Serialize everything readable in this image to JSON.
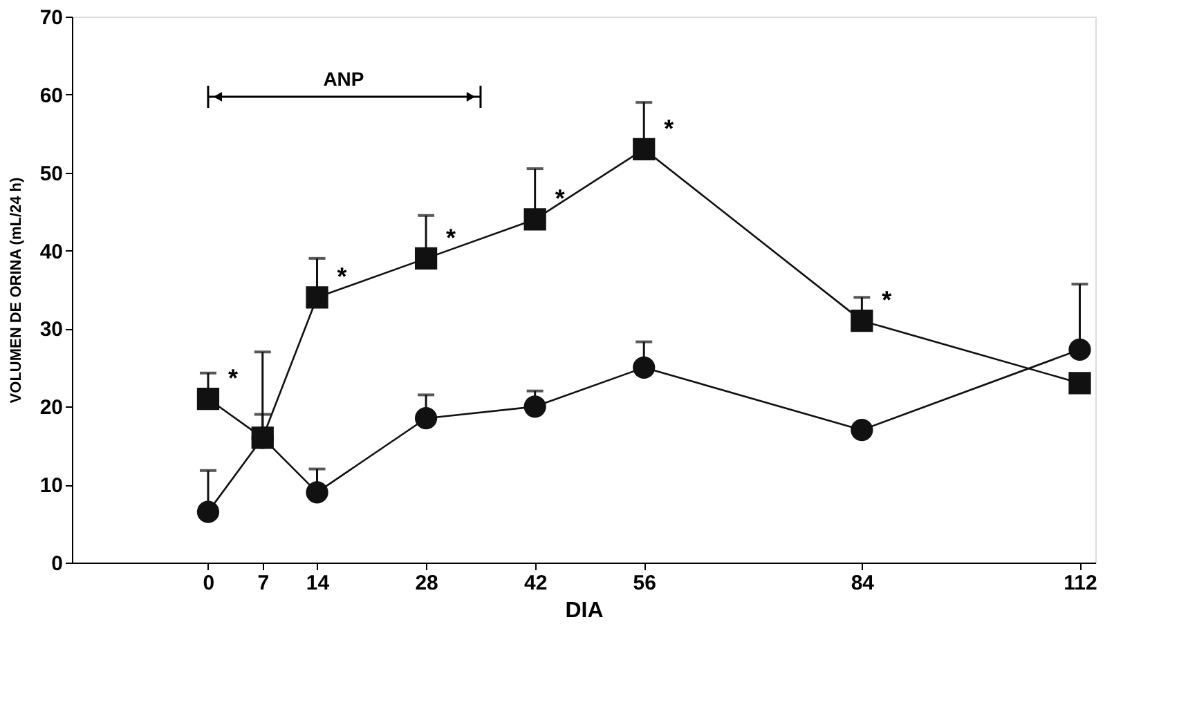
{
  "chart_data": {
    "type": "line",
    "xlabel": "DIA",
    "ylabel": "VOLUMEN DE ORINA (mL/24 h)",
    "x": [
      0,
      7,
      14,
      28,
      42,
      56,
      84,
      112
    ],
    "series": [
      {
        "color": "#111111",
        "marker": "square",
        "values": [
          21,
          16,
          34,
          39,
          44,
          53,
          31,
          23
        ],
        "value_labels": [
          "*",
          null,
          "*",
          "*",
          "*",
          "*",
          "*",
          null
        ],
        "errors": [
          [
            21,
            24.3
          ],
          [
            16,
            27
          ],
          [
            34,
            39
          ],
          [
            39,
            44.5
          ],
          [
            44,
            50.5
          ],
          [
            53,
            59
          ],
          [
            31,
            34
          ],
          null
        ]
      },
      {
        "color": "#111111",
        "marker": "circle",
        "values": [
          6.5,
          16,
          9,
          18.5,
          20,
          25,
          17,
          27.3
        ],
        "errors": [
          [
            6.5,
            11.8
          ],
          [
            16,
            19
          ],
          [
            9,
            12
          ],
          [
            18.5,
            21.5
          ],
          [
            20,
            22
          ],
          [
            25,
            28.3
          ],
          null,
          [
            27.3,
            35.7
          ]
        ]
      }
    ],
    "xlim": [
      -17.5,
      114
    ],
    "xticks": [
      0,
      7,
      14,
      28,
      42,
      56,
      84,
      112
    ],
    "ylim": [
      0,
      70
    ],
    "yticks": [
      0,
      10,
      20,
      30,
      40,
      50,
      60,
      70
    ],
    "grid": false,
    "line_style": "solid",
    "annotations": [
      "ANP"
    ]
  }
}
